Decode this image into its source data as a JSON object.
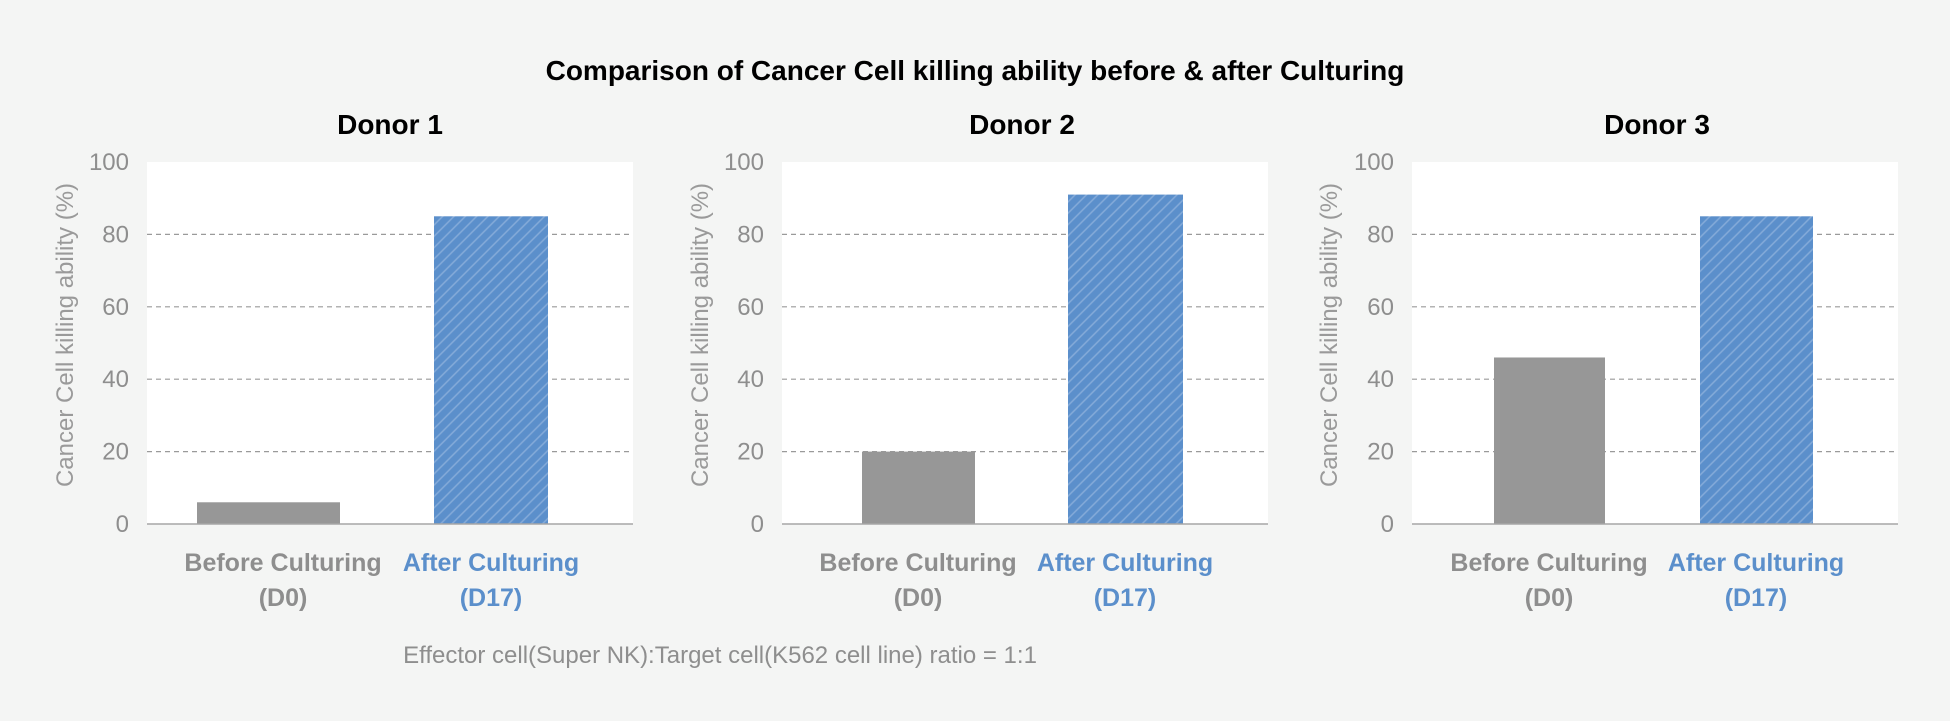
{
  "title": "Comparison of Cancer Cell killing ability before & after Culturing",
  "footnote": "Effector cell(Super NK):Target cell(K562 cell line) ratio = 1:1",
  "colors": {
    "background": "#f4f5f4",
    "before_bar": "#979797",
    "after_bar": "#5b8fcb",
    "before_label": "#8e8e8e",
    "after_label": "#5b8fcb",
    "grid": "#9a9a9a"
  },
  "chart_data": [
    {
      "type": "bar",
      "title": "Donor 1",
      "ylabel": "Cancer Cell killing ability (%)",
      "ylim": [
        0,
        100
      ],
      "yticks": [
        0,
        20,
        40,
        60,
        80,
        100
      ],
      "grid": "dashed horizontal",
      "categories": [
        [
          "Before Culturing",
          "(D0)"
        ],
        [
          "After Culturing",
          "(D17)"
        ]
      ],
      "values": [
        6,
        85
      ]
    },
    {
      "type": "bar",
      "title": "Donor 2",
      "ylabel": "Cancer Cell killing ability (%)",
      "ylim": [
        0,
        100
      ],
      "yticks": [
        0,
        20,
        40,
        60,
        80,
        100
      ],
      "grid": "dashed horizontal",
      "categories": [
        [
          "Before Culturing",
          "(D0)"
        ],
        [
          "After Culturing",
          "(D17)"
        ]
      ],
      "values": [
        20,
        91
      ]
    },
    {
      "type": "bar",
      "title": "Donor 3",
      "ylabel": "Cancer Cell killing ability (%)",
      "ylim": [
        0,
        100
      ],
      "yticks": [
        0,
        20,
        40,
        60,
        80,
        100
      ],
      "grid": "dashed horizontal",
      "categories": [
        [
          "Before Culturing",
          "(D0)"
        ],
        [
          "After Culturing",
          "(D17)"
        ]
      ],
      "values": [
        46,
        85
      ]
    }
  ]
}
